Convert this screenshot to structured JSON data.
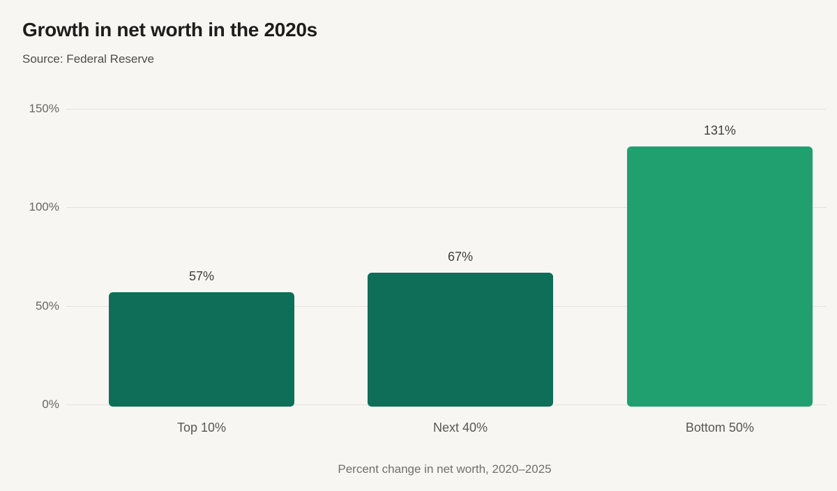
{
  "page": {
    "background_color": "#f7f6f3"
  },
  "header": {
    "title": "Growth in net worth in the 2020s",
    "source": "Source: Federal Reserve"
  },
  "chart_data": {
    "type": "bar",
    "title": "Growth in net worth in the 2020s",
    "source": "Source: Federal Reserve",
    "categories": [
      "Top 10%",
      "Next 40%",
      "Bottom 50%"
    ],
    "values": [
      57,
      67,
      131
    ],
    "value_labels": [
      "57%",
      "67%",
      "131%"
    ],
    "bar_colors": [
      "#0f6e57",
      "#0f6e57",
      "#21a06f"
    ],
    "xlabel": "Percent change in net worth, 2020–2025",
    "ylabel": "",
    "ylim": [
      0,
      150
    ],
    "yticks": [
      0,
      50,
      100,
      150
    ],
    "ytick_labels": [
      "0%",
      "50%",
      "100%",
      "150%"
    ],
    "grid": true,
    "legend": false
  },
  "colors": {
    "background": "#f7f6f3",
    "gridline": "#e4e2de",
    "bar_dark_green": "#0f6e57",
    "bar_light_green": "#21a06f",
    "title_text": "#1d1d1b",
    "muted_text": "#666664"
  }
}
